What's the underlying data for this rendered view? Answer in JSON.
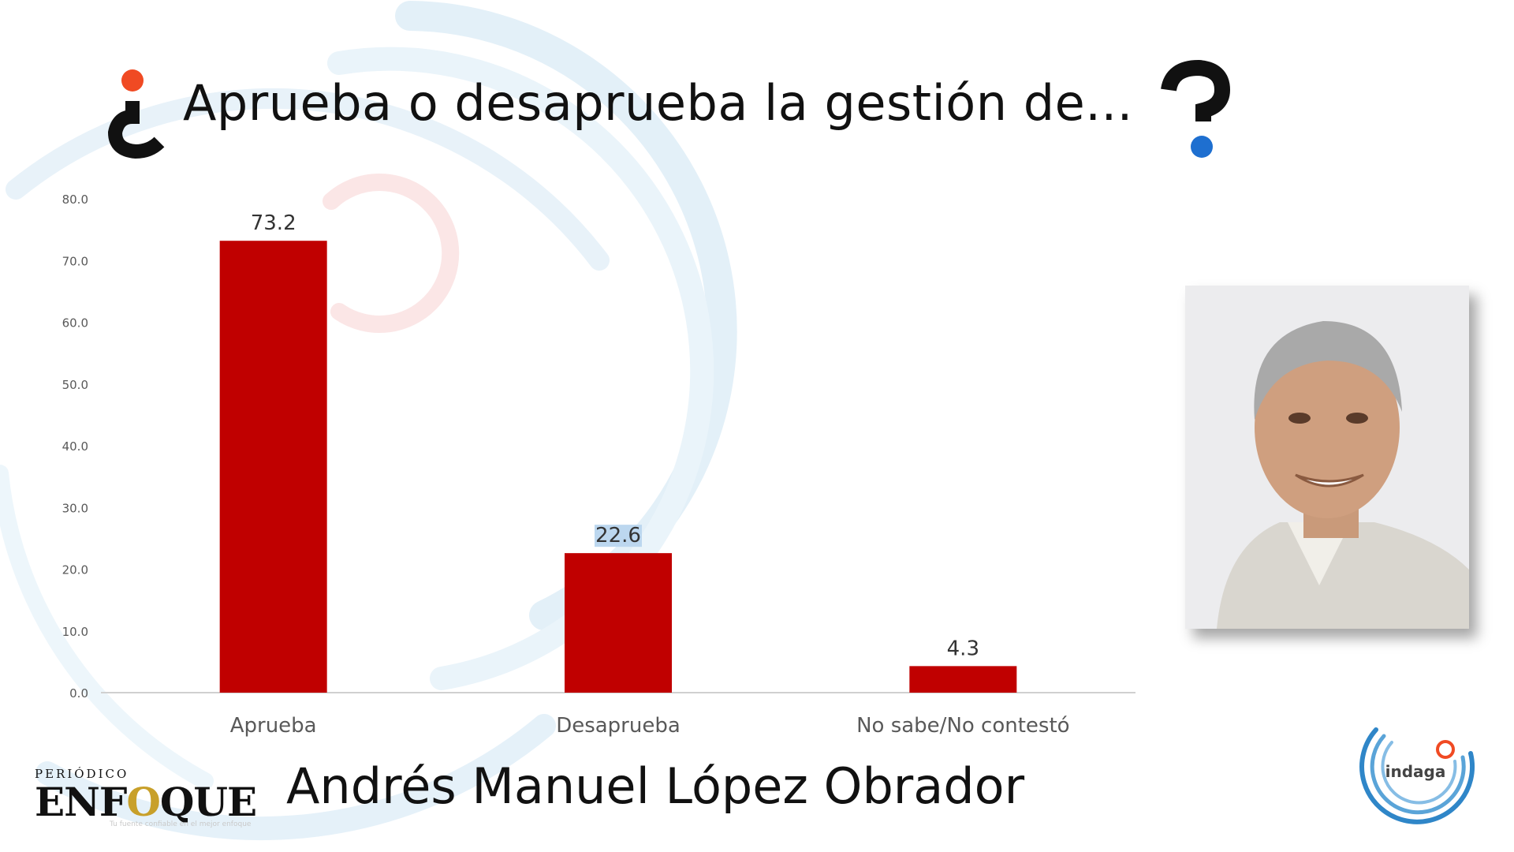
{
  "title": "Aprueba o desaprueba la gestión de...",
  "subject_name": "Andrés Manuel López Obrador",
  "brand": {
    "small": "PERIÓDICO",
    "big_prefix": "ENF",
    "big_o": "O",
    "big_suffix": "QUE",
    "tagline": "Tu fuente confiable en el mejor enfoque"
  },
  "indaga_logo_text": "indaga",
  "colors": {
    "bar": "#c00000",
    "accent_red": "#f04a23",
    "accent_blue": "#1e6fd0",
    "axis_text": "#595959",
    "baseline": "#d0d0d0"
  },
  "icons": {
    "title_left": "inverted-question-mark-icon",
    "title_right": "question-mark-icon"
  },
  "chart_data": {
    "type": "bar",
    "categories": [
      "Aprueba",
      "Desaprueba",
      "No sabe/No contestó"
    ],
    "values": [
      73.2,
      22.6,
      4.3
    ],
    "value_labels": [
      "73.2",
      "22.6",
      "4.3"
    ],
    "ylim": [
      0,
      80
    ],
    "yticks": [
      0,
      10,
      20,
      30,
      40,
      50,
      60,
      70,
      80
    ],
    "ytick_labels": [
      "0.0",
      "10.0",
      "20.0",
      "30.0",
      "40.0",
      "50.0",
      "60.0",
      "70.0",
      "80.0"
    ],
    "title": "Aprueba o desaprueba la gestión de...",
    "xlabel": "",
    "ylabel": "",
    "grid": false,
    "highlighted_label_index": 1
  }
}
